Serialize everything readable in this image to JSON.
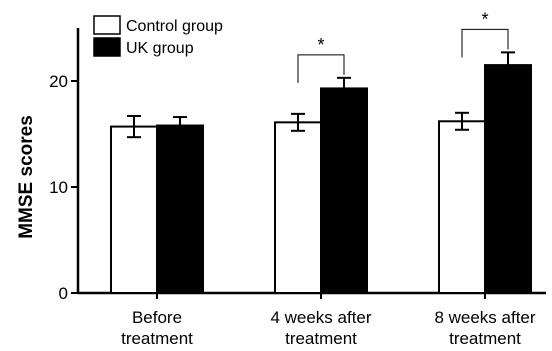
{
  "chart_data": {
    "type": "bar",
    "categories": [
      "Before\ntreatment",
      "4 weeks after\ntreatment",
      "8 weeks after\ntreatment"
    ],
    "series": [
      {
        "name": "Control group",
        "values": [
          15.7,
          16.1,
          16.2
        ],
        "errors": [
          1.0,
          0.8,
          0.8
        ],
        "color": "#ffffff",
        "stroke": "#000000"
      },
      {
        "name": "UK group",
        "values": [
          15.8,
          19.3,
          21.5
        ],
        "errors": [
          0.8,
          1.0,
          1.2
        ],
        "color": "#000000",
        "stroke": "#000000"
      }
    ],
    "ylabel": "MMSE scores",
    "xlabel": "",
    "ylim": [
      0,
      25
    ],
    "yticks": [
      0,
      10,
      20
    ],
    "significance": [
      {
        "category_index": 1,
        "label": "*"
      },
      {
        "category_index": 2,
        "label": "*"
      }
    ],
    "legend": "top-left",
    "grid": false
  }
}
